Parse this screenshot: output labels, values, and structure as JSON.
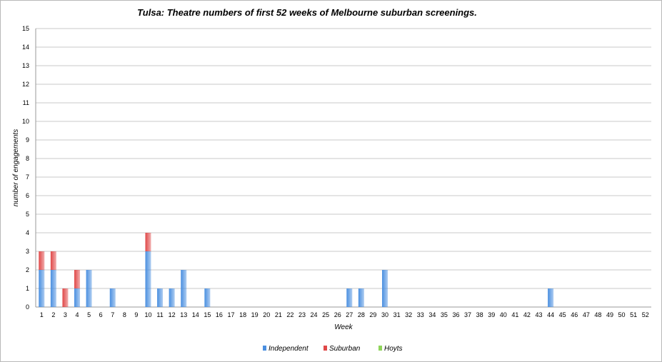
{
  "chart_data": {
    "type": "bar",
    "stacked": true,
    "title": "Tulsa: Theatre numbers of first 52 weeks of Melbourne suburban screenings.",
    "xlabel": "Week",
    "ylabel": "number of engagements",
    "ylim": [
      0,
      15
    ],
    "yticks": [
      "0",
      "1",
      "2",
      "3",
      "4",
      "5",
      "6",
      "7",
      "8",
      "9",
      "10",
      "11",
      "12",
      "13",
      "14",
      "15"
    ],
    "grid": true,
    "legend_position": "bottom",
    "categories": [
      "1",
      "2",
      "3",
      "4",
      "5",
      "6",
      "7",
      "8",
      "9",
      "10",
      "11",
      "12",
      "13",
      "14",
      "15",
      "16",
      "17",
      "18",
      "19",
      "20",
      "21",
      "22",
      "23",
      "24",
      "25",
      "26",
      "27",
      "28",
      "29",
      "30",
      "31",
      "32",
      "33",
      "34",
      "35",
      "36",
      "37",
      "38",
      "39",
      "40",
      "41",
      "42",
      "43",
      "44",
      "45",
      "46",
      "47",
      "48",
      "49",
      "50",
      "51",
      "52"
    ],
    "series": [
      {
        "name": "Independent",
        "color": "#4a8fe0",
        "values": [
          2,
          2,
          0,
          1,
          2,
          0,
          1,
          0,
          0,
          3,
          1,
          1,
          2,
          0,
          1,
          0,
          0,
          0,
          0,
          0,
          0,
          0,
          0,
          0,
          0,
          0,
          1,
          1,
          0,
          2,
          0,
          0,
          0,
          0,
          0,
          0,
          0,
          0,
          0,
          0,
          0,
          0,
          0,
          1,
          0,
          0,
          0,
          0,
          0,
          0,
          0,
          0
        ]
      },
      {
        "name": "Suburban",
        "color": "#e04848",
        "values": [
          1,
          1,
          1,
          1,
          0,
          0,
          0,
          0,
          0,
          1,
          0,
          0,
          0,
          0,
          0,
          0,
          0,
          0,
          0,
          0,
          0,
          0,
          0,
          0,
          0,
          0,
          0,
          0,
          0,
          0,
          0,
          0,
          0,
          0,
          0,
          0,
          0,
          0,
          0,
          0,
          0,
          0,
          0,
          0,
          0,
          0,
          0,
          0,
          0,
          0,
          0,
          0
        ]
      },
      {
        "name": "Hoyts",
        "color": "#8fd45a",
        "values": [
          0,
          0,
          0,
          0,
          0,
          0,
          0,
          0,
          0,
          0,
          0,
          0,
          0,
          0,
          0,
          0,
          0,
          0,
          0,
          0,
          0,
          0,
          0,
          0,
          0,
          0,
          0,
          0,
          0,
          0,
          0,
          0,
          0,
          0,
          0,
          0,
          0,
          0,
          0,
          0,
          0,
          0,
          0,
          0,
          0,
          0,
          0,
          0,
          0,
          0,
          0,
          0
        ]
      }
    ]
  }
}
